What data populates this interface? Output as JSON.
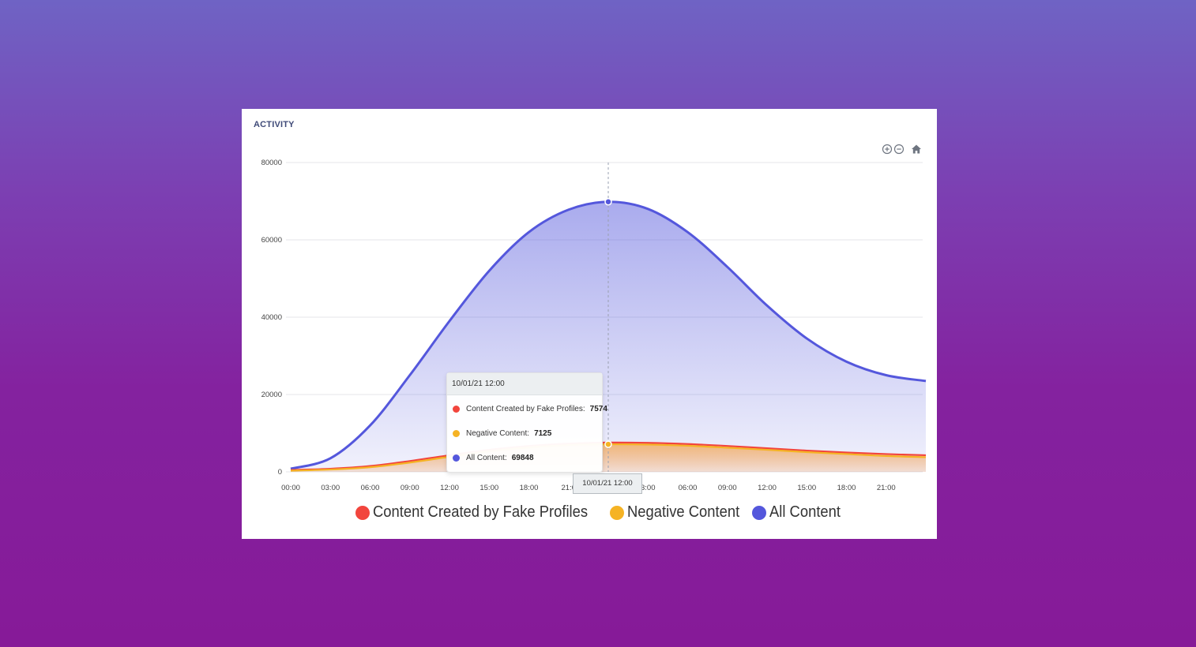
{
  "card": {
    "title": "ACTIVITY"
  },
  "toolbar": {
    "zoom_in_icon": "zoom-in-icon",
    "zoom_out_icon": "zoom-out-icon",
    "reset_icon": "home-icon"
  },
  "chart_data": {
    "type": "area",
    "title": "ACTIVITY",
    "xlabel": "",
    "ylabel": "",
    "ylim": [
      0,
      80000
    ],
    "yticks": [
      "0",
      "20000",
      "40000",
      "60000",
      "80000"
    ],
    "xticks": [
      "00:00",
      "03:00",
      "06:00",
      "09:00",
      "12:00",
      "15:00",
      "18:00",
      "21:0",
      "10/01/21 12:00",
      "3:00",
      "06:00",
      "09:00",
      "12:00",
      "15:00",
      "18:00",
      "21:00"
    ],
    "x_hours": [
      0,
      3,
      6,
      9,
      12,
      15,
      18,
      21,
      24,
      27,
      30,
      33,
      36,
      39,
      42,
      45,
      48
    ],
    "grid": true,
    "legend_position": "bottom",
    "series": [
      {
        "name": "Content Created by Fake Profiles",
        "color": "#f2453d",
        "values": [
          500,
          800,
          1500,
          2800,
          4300,
          5700,
          6700,
          7300,
          7574,
          7500,
          7200,
          6700,
          6100,
          5500,
          5000,
          4600,
          4300
        ]
      },
      {
        "name": "Negative Content",
        "color": "#f5b324",
        "values": [
          300,
          600,
          1200,
          2400,
          3900,
          5300,
          6300,
          6900,
          7125,
          7050,
          6750,
          6250,
          5700,
          5100,
          4600,
          4100,
          3800
        ]
      },
      {
        "name": "All Content",
        "color": "#5457dc",
        "values": [
          800,
          3500,
          12000,
          25000,
          39000,
          52000,
          62000,
          67800,
          69848,
          68000,
          62000,
          53000,
          43000,
          34500,
          28500,
          25000,
          23500
        ]
      }
    ]
  },
  "tooltip": {
    "header": "10/01/21 12:00",
    "rows": [
      {
        "label": "Content Created by Fake Profiles:",
        "value": "7574",
        "color": "#f2453d"
      },
      {
        "label": "Negative Content:",
        "value": "7125",
        "color": "#f5b324"
      },
      {
        "label": "All Content:",
        "value": "69848",
        "color": "#5457dc"
      }
    ]
  },
  "crosshair_label": "10/01/21 12:00",
  "legend": {
    "items": [
      {
        "label": "Content Created by Fake Profiles",
        "color": "#f2453d"
      },
      {
        "label": "Negative Content",
        "color": "#f5b324"
      },
      {
        "label": "All Content",
        "color": "#5457dc"
      }
    ]
  }
}
